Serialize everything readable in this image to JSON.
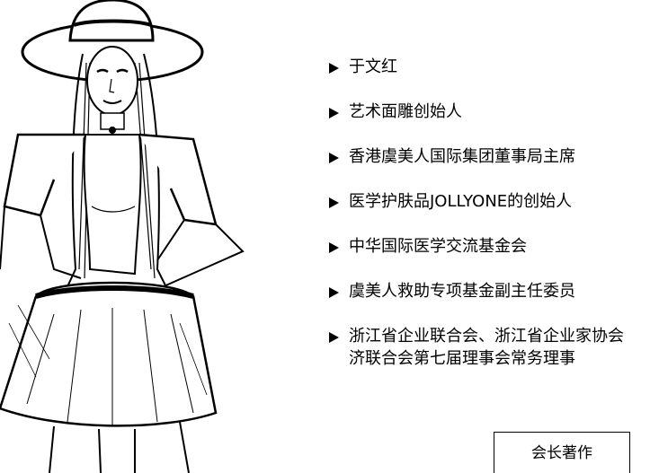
{
  "bio": {
    "items": [
      {
        "line1": "于文红"
      },
      {
        "line1": "艺术面雕创始人"
      },
      {
        "line1": "香港虞美人国际集团董事局主席"
      },
      {
        "line1": "医学护肤品JOLLYONE的创始人"
      },
      {
        "line1": "中华国际医学交流基金会"
      },
      {
        "line1": "虞美人救助专项基金副主任委员"
      },
      {
        "line1": "浙江省企业联合会、浙江省企业家协会",
        "line2": "济联合会第七届理事会常务理事"
      }
    ]
  },
  "actions": {
    "books_label": "会长著作"
  }
}
